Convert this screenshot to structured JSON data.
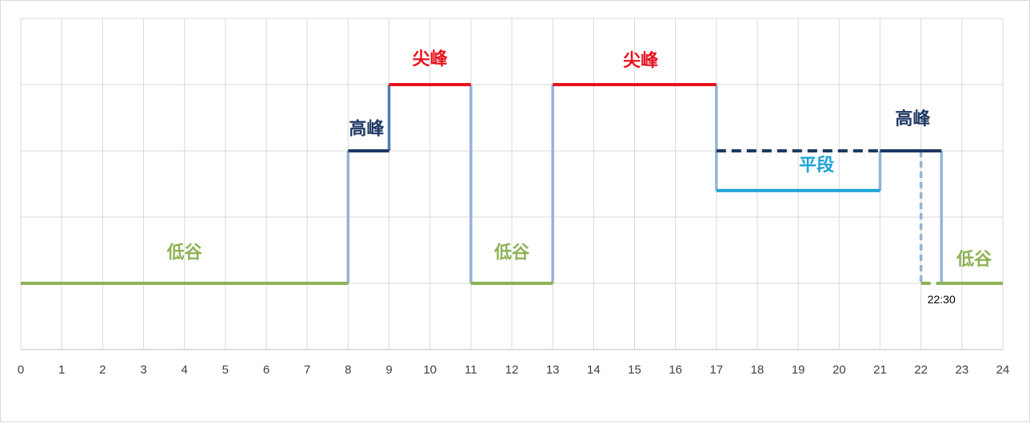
{
  "chart_data": {
    "type": "line",
    "title": "",
    "xlabel": "",
    "ylabel": "",
    "xlim": [
      0,
      24
    ],
    "ylim": [
      0,
      5
    ],
    "x_ticks": [
      "0",
      "1",
      "2",
      "3",
      "4",
      "5",
      "6",
      "7",
      "8",
      "9",
      "10",
      "11",
      "12",
      "13",
      "14",
      "15",
      "16",
      "17",
      "18",
      "19",
      "20",
      "21",
      "22",
      "23",
      "24"
    ],
    "y_tick_labels": [],
    "grid": true,
    "levels": {
      "低谷": 1,
      "平段": 2.4,
      "高峰": 3,
      "尖峰": 4
    },
    "segments": [
      {
        "label": "低谷",
        "x0": 0,
        "x1": 8,
        "y": 1,
        "color": "#8db255",
        "dashed": false
      },
      {
        "label": "高峰",
        "x0": 8,
        "x1": 9,
        "y": 3,
        "color": "#1f3864",
        "dashed": false
      },
      {
        "label": "尖峰",
        "x0": 9,
        "x1": 11,
        "y": 4,
        "color": "#e8121f",
        "dashed": false
      },
      {
        "label": "低谷",
        "x0": 11,
        "x1": 13,
        "y": 1,
        "color": "#8db255",
        "dashed": false
      },
      {
        "label": "尖峰",
        "x0": 13,
        "x1": 17,
        "y": 4,
        "color": "#e8121f",
        "dashed": false
      },
      {
        "label": "高峰",
        "x0": 17,
        "x1": 21,
        "y": 3,
        "color": "#1f3864",
        "dashed": true
      },
      {
        "label": "平段",
        "x0": 17,
        "x1": 21,
        "y": 2.4,
        "color": "#1ba3d9",
        "dashed": false
      },
      {
        "label": "高峰",
        "x0": 21,
        "x1": 22.5,
        "y": 3,
        "color": "#1f3864",
        "dashed": false
      },
      {
        "label": "低谷",
        "x0": 22,
        "x1": 22.5,
        "y": 1,
        "color": "#8db255",
        "dashed": true
      },
      {
        "label": "低谷",
        "x0": 22.5,
        "x1": 24,
        "y": 1,
        "color": "#8db255",
        "dashed": false
      }
    ],
    "transitions": [
      {
        "x": 8,
        "y0": 1,
        "y1": 3,
        "color": "#95b3d7",
        "dashed": false
      },
      {
        "x": 9,
        "y0": 3,
        "y1": 4,
        "color": "#4f7db3",
        "dashed": false
      },
      {
        "x": 11,
        "y0": 4,
        "y1": 1,
        "color": "#95b3d7",
        "dashed": false
      },
      {
        "x": 13,
        "y0": 1,
        "y1": 4,
        "color": "#95b3d7",
        "dashed": false
      },
      {
        "x": 17,
        "y0": 4,
        "y1": 2.4,
        "color": "#95b3d7",
        "dashed": false
      },
      {
        "x": 21,
        "y0": 2.4,
        "y1": 3,
        "color": "#95b3d7",
        "dashed": false
      },
      {
        "x": 22,
        "y0": 3,
        "y1": 1,
        "color": "#95b3d7",
        "dashed": true
      },
      {
        "x": 22.5,
        "y0": 3,
        "y1": 1,
        "color": "#95b3d7",
        "dashed": false
      }
    ],
    "labels": [
      {
        "text": "低谷",
        "x": 4,
        "y": 1.38,
        "color": "#8db255"
      },
      {
        "text": "低谷",
        "x": 12,
        "y": 1.38,
        "color": "#8db255"
      },
      {
        "text": "低谷",
        "x": 23.3,
        "y": 1.28,
        "color": "#8db255"
      },
      {
        "text": "高峰",
        "x": 8.45,
        "y": 3.25,
        "color": "#1f3864"
      },
      {
        "text": "高峰",
        "x": 21.8,
        "y": 3.4,
        "color": "#1f3864"
      },
      {
        "text": "尖峰",
        "x": 10,
        "y": 4.3,
        "color": "#e8121f"
      },
      {
        "text": "尖峰",
        "x": 15.15,
        "y": 4.28,
        "color": "#e8121f"
      },
      {
        "text": "平段",
        "x": 19.45,
        "y": 2.7,
        "color": "#1ba3d9"
      }
    ],
    "annotations": [
      {
        "text": "22:30",
        "x": 22.5,
        "y": 0.7
      }
    ]
  }
}
